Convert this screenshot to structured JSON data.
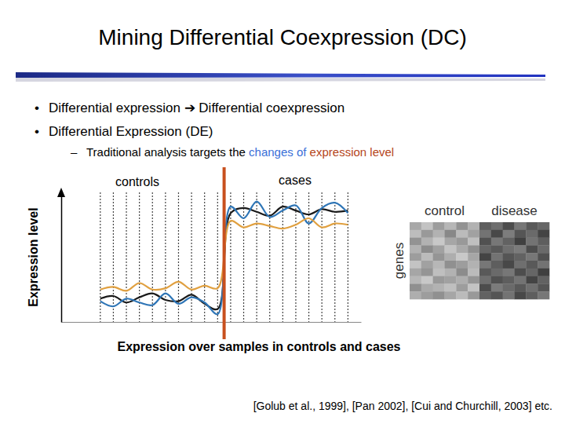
{
  "slide": {
    "title": "Mining Differential Coexpression (DC)",
    "bullets": [
      {
        "symbol": "•",
        "text": "Differential expression ➔ Differential coexpression"
      },
      {
        "symbol": "•",
        "text": "Differential Expression (DE)"
      }
    ],
    "sub_bullet": {
      "symbol": "–",
      "parts": [
        {
          "text": "Traditional analysis targets the ",
          "color": "#000000"
        },
        {
          "text": "changes of",
          "color": "#3a6fd8"
        },
        {
          "text": " expression level",
          "color": "#b5451b"
        }
      ]
    },
    "citation": "[Golub et al., 1999], [Pan 2002], [Cui and Churchill, 2003] etc."
  },
  "chart_data": [
    {
      "type": "line",
      "xlabel": "Expression over samples in controls and cases",
      "ylabel": "Expression level",
      "annotations": [
        "controls",
        "cases"
      ],
      "divider": 9.5,
      "x": [
        0,
        1,
        2,
        3,
        4,
        5,
        6,
        7,
        8,
        9,
        10,
        11,
        12,
        13,
        14,
        15,
        16,
        17,
        18,
        19
      ],
      "xlim": [
        -3,
        20
      ],
      "xticks": [
        0,
        1,
        2,
        3,
        4,
        5,
        6,
        7,
        8,
        9,
        10,
        11,
        12,
        13,
        14,
        15,
        16,
        17,
        18,
        19
      ],
      "ylim": [
        0,
        10
      ],
      "grid": true,
      "tick_labels": false,
      "series": [
        {
          "color": "#1a1a1a",
          "values": [
            1.8,
            2.0,
            1.5,
            1.9,
            2.2,
            1.7,
            1.6,
            2.1,
            1.4,
            1.0,
            8.4,
            8.8,
            8.5,
            8.2,
            8.9,
            8.6,
            8.3,
            8.7,
            8.5,
            8.6
          ]
        },
        {
          "color": "#2e75b6",
          "values": [
            1.6,
            1.2,
            1.8,
            1.5,
            1.3,
            2.2,
            1.4,
            1.9,
            1.5,
            0.6,
            8.9,
            8.0,
            9.3,
            8.1,
            8.6,
            9.0,
            7.6,
            8.8,
            9.2,
            8.4
          ]
        },
        {
          "color": "#e0a040",
          "values": [
            2.5,
            2.7,
            2.4,
            3.0,
            2.5,
            2.6,
            3.1,
            2.5,
            2.8,
            2.6,
            7.8,
            7.3,
            7.6,
            7.4,
            7.2,
            7.5,
            8.0,
            7.3,
            7.6,
            7.5
          ]
        }
      ]
    },
    {
      "type": "heatmap",
      "categories": [
        "control",
        "disease"
      ],
      "ylabel": "genes",
      "color_range": [
        0,
        1
      ],
      "cells": [
        [
          0.35,
          0.22,
          0.4,
          0.28,
          0.45,
          0.3,
          0.7,
          0.62,
          0.78,
          0.58,
          0.72,
          0.66
        ],
        [
          0.25,
          0.42,
          0.3,
          0.5,
          0.26,
          0.38,
          0.6,
          0.8,
          0.55,
          0.74,
          0.64,
          0.82
        ],
        [
          0.45,
          0.3,
          0.2,
          0.36,
          0.42,
          0.24,
          0.76,
          0.58,
          0.68,
          0.84,
          0.6,
          0.7
        ],
        [
          0.3,
          0.48,
          0.38,
          0.22,
          0.34,
          0.46,
          0.66,
          0.72,
          0.62,
          0.56,
          0.78,
          0.64
        ],
        [
          0.4,
          0.26,
          0.44,
          0.32,
          0.2,
          0.36,
          0.82,
          0.6,
          0.74,
          0.68,
          0.58,
          0.76
        ],
        [
          0.22,
          0.38,
          0.28,
          0.46,
          0.4,
          0.3,
          0.58,
          0.7,
          0.8,
          0.62,
          0.72,
          0.6
        ],
        [
          0.36,
          0.44,
          0.24,
          0.3,
          0.48,
          0.26,
          0.72,
          0.64,
          0.58,
          0.78,
          0.66,
          0.84
        ],
        [
          0.28,
          0.2,
          0.42,
          0.38,
          0.32,
          0.44,
          0.62,
          0.76,
          0.7,
          0.6,
          0.82,
          0.68
        ],
        [
          0.46,
          0.34,
          0.3,
          0.24,
          0.4,
          0.22,
          0.78,
          0.56,
          0.64,
          0.72,
          0.62,
          0.74
        ],
        [
          0.32,
          0.4,
          0.46,
          0.36,
          0.26,
          0.42,
          0.68,
          0.74,
          0.6,
          0.8,
          0.7,
          0.58
        ]
      ]
    }
  ]
}
